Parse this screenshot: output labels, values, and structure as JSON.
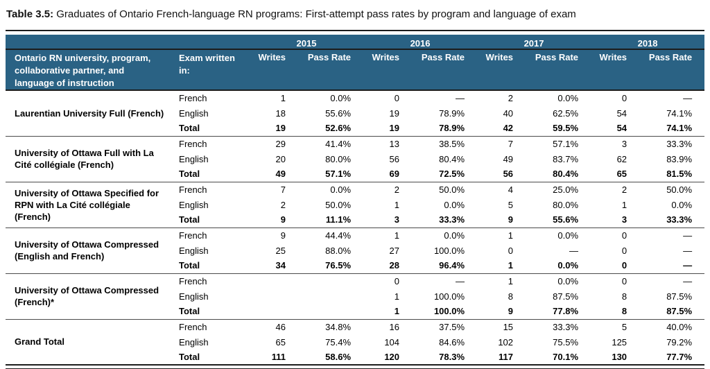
{
  "title": {
    "label": "Table 3.5:",
    "text": "Graduates of Ontario French-language RN programs: First-attempt pass rates by program and language of exam"
  },
  "colors": {
    "header_bg": "#2A6284",
    "header_text": "#FFFFFF"
  },
  "table": {
    "col1_header": "Ontario RN university, program, collaborative partner, and language of instruction",
    "col2_header": "Exam written in:",
    "years": [
      "2015",
      "2016",
      "2017",
      "2018"
    ],
    "subheaders": {
      "writes": "Writes",
      "pass_rate": "Pass Rate"
    },
    "missing_value_symbol": "—",
    "groups": [
      {
        "program": "Laurentian University Full (French)",
        "rows": [
          {
            "exam": "French",
            "bold": false,
            "values": [
              "1",
              "0.0%",
              "0",
              "—",
              "2",
              "0.0%",
              "0",
              "—"
            ]
          },
          {
            "exam": "English",
            "bold": false,
            "values": [
              "18",
              "55.6%",
              "19",
              "78.9%",
              "40",
              "62.5%",
              "54",
              "74.1%"
            ]
          },
          {
            "exam": "Total",
            "bold": true,
            "values": [
              "19",
              "52.6%",
              "19",
              "78.9%",
              "42",
              "59.5%",
              "54",
              "74.1%"
            ]
          }
        ]
      },
      {
        "program": "University of Ottawa Full with La Cité collégiale (French)",
        "rows": [
          {
            "exam": "French",
            "bold": false,
            "values": [
              "29",
              "41.4%",
              "13",
              "38.5%",
              "7",
              "57.1%",
              "3",
              "33.3%"
            ]
          },
          {
            "exam": "English",
            "bold": false,
            "values": [
              "20",
              "80.0%",
              "56",
              "80.4%",
              "49",
              "83.7%",
              "62",
              "83.9%"
            ]
          },
          {
            "exam": "Total",
            "bold": true,
            "values": [
              "49",
              "57.1%",
              "69",
              "72.5%",
              "56",
              "80.4%",
              "65",
              "81.5%"
            ]
          }
        ]
      },
      {
        "program": "University of Ottawa Specified for RPN with La Cité collégiale (French)",
        "rows": [
          {
            "exam": "French",
            "bold": false,
            "values": [
              "7",
              "0.0%",
              "2",
              "50.0%",
              "4",
              "25.0%",
              "2",
              "50.0%"
            ]
          },
          {
            "exam": "English",
            "bold": false,
            "values": [
              "2",
              "50.0%",
              "1",
              "0.0%",
              "5",
              "80.0%",
              "1",
              "0.0%"
            ]
          },
          {
            "exam": "Total",
            "bold": true,
            "values": [
              "9",
              "11.1%",
              "3",
              "33.3%",
              "9",
              "55.6%",
              "3",
              "33.3%"
            ]
          }
        ]
      },
      {
        "program": "University of Ottawa Compressed (English and French)",
        "rows": [
          {
            "exam": "French",
            "bold": false,
            "values": [
              "9",
              "44.4%",
              "1",
              "0.0%",
              "1",
              "0.0%",
              "0",
              "—"
            ]
          },
          {
            "exam": "English",
            "bold": false,
            "values": [
              "25",
              "88.0%",
              "27",
              "100.0%",
              "0",
              "—",
              "0",
              "—"
            ]
          },
          {
            "exam": "Total",
            "bold": true,
            "values": [
              "34",
              "76.5%",
              "28",
              "96.4%",
              "1",
              "0.0%",
              "0",
              "—"
            ]
          }
        ]
      },
      {
        "program": "University of Ottawa Compressed (French)*",
        "rows": [
          {
            "exam": "French",
            "bold": false,
            "values": [
              "",
              "",
              "0",
              "—",
              "1",
              "0.0%",
              "0",
              "—"
            ]
          },
          {
            "exam": "English",
            "bold": false,
            "values": [
              "",
              "",
              "1",
              "100.0%",
              "8",
              "87.5%",
              "8",
              "87.5%"
            ]
          },
          {
            "exam": "Total",
            "bold": true,
            "values": [
              "",
              "",
              "1",
              "100.0%",
              "9",
              "77.8%",
              "8",
              "87.5%"
            ]
          }
        ]
      },
      {
        "program": "Grand Total",
        "rows": [
          {
            "exam": "French",
            "bold": false,
            "values": [
              "46",
              "34.8%",
              "16",
              "37.5%",
              "15",
              "33.3%",
              "5",
              "40.0%"
            ]
          },
          {
            "exam": "English",
            "bold": false,
            "values": [
              "65",
              "75.4%",
              "104",
              "84.6%",
              "102",
              "75.5%",
              "125",
              "79.2%"
            ]
          },
          {
            "exam": "Total",
            "bold": true,
            "values": [
              "111",
              "58.6%",
              "120",
              "78.3%",
              "117",
              "70.1%",
              "130",
              "77.7%"
            ]
          }
        ]
      }
    ]
  }
}
